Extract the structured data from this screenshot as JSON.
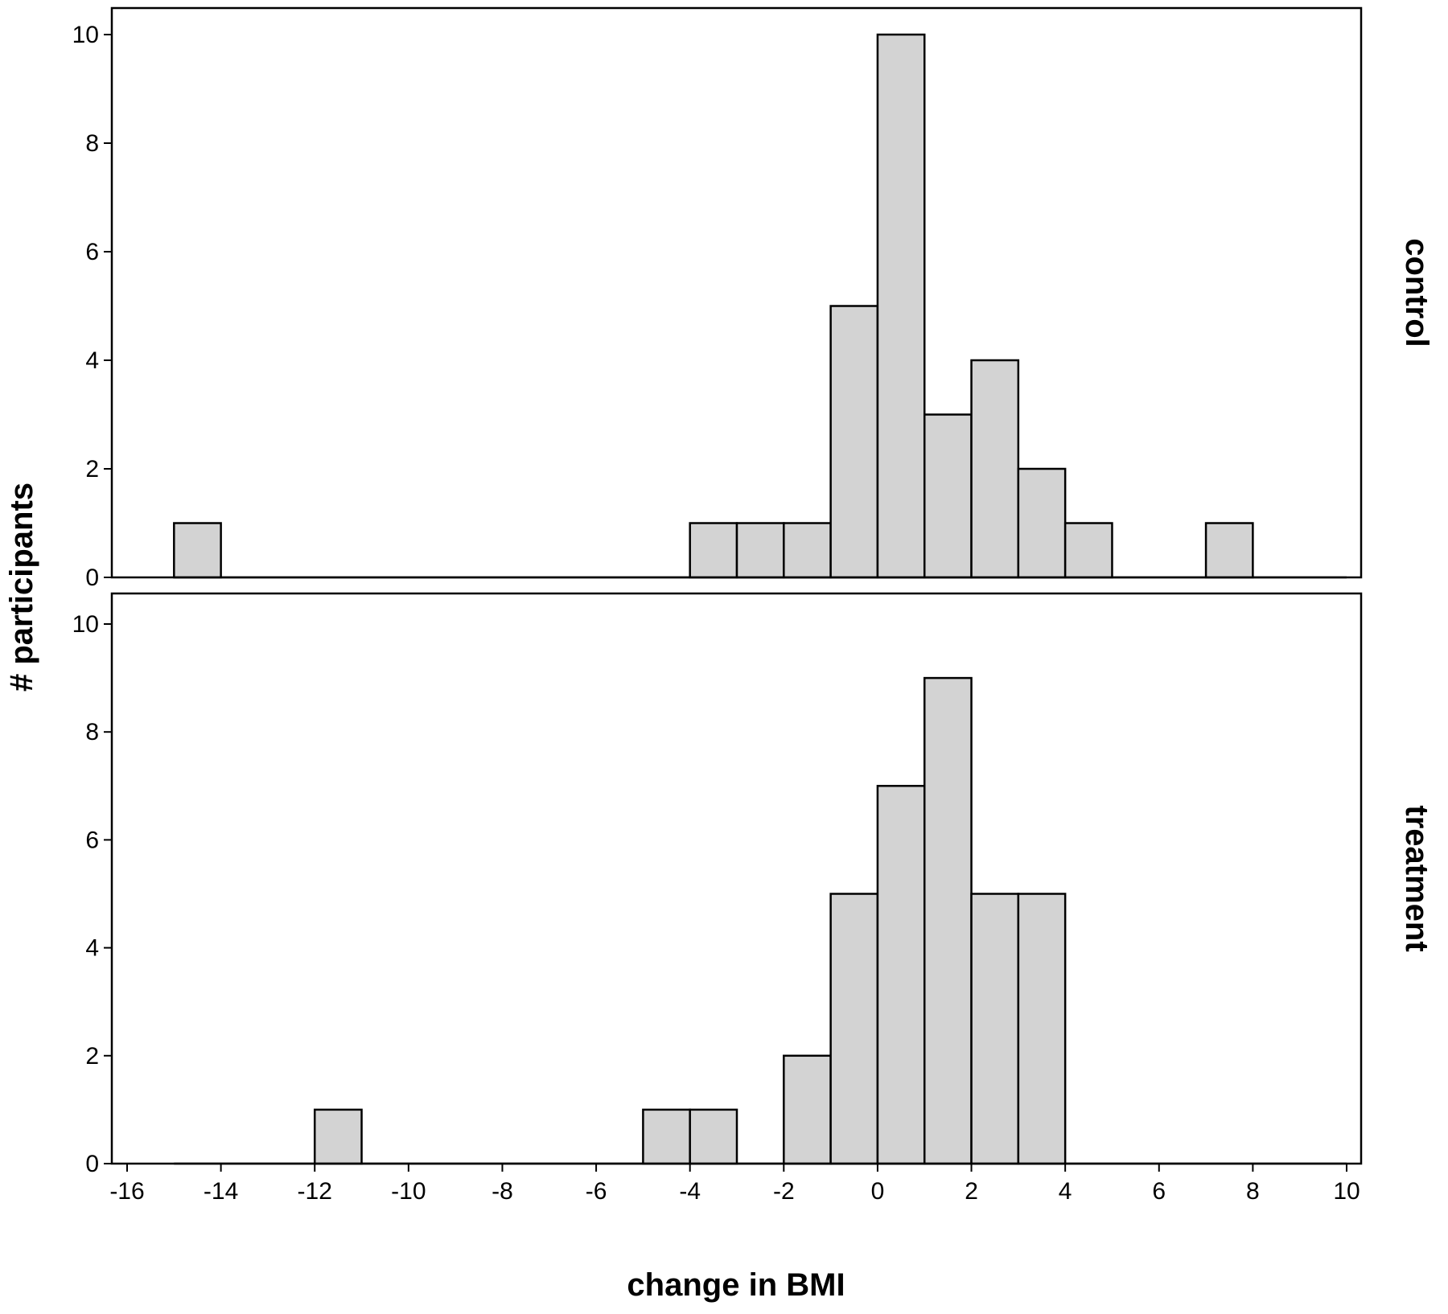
{
  "chart_data": {
    "type": "bar",
    "subtype": "histogram",
    "xlabel": "change in BMI",
    "ylabel": "# participants",
    "xlim": [
      -16,
      10
    ],
    "ylim": [
      0,
      10
    ],
    "xticks": [
      -16,
      -14,
      -12,
      -10,
      -8,
      -6,
      -4,
      -2,
      0,
      2,
      4,
      6,
      8,
      10
    ],
    "yticks": [
      0,
      2,
      4,
      6,
      8,
      10
    ],
    "bin_width": 1,
    "grid": false,
    "bar_color": "#d3d3d3",
    "panels": [
      {
        "name": "control",
        "bins": [
          {
            "x0": -15,
            "x1": -14,
            "count": 1
          },
          {
            "x0": -4,
            "x1": -3,
            "count": 1
          },
          {
            "x0": -3,
            "x1": -2,
            "count": 1
          },
          {
            "x0": -2,
            "x1": -1,
            "count": 1
          },
          {
            "x0": -1,
            "x1": 0,
            "count": 5
          },
          {
            "x0": 0,
            "x1": 1,
            "count": 10
          },
          {
            "x0": 1,
            "x1": 2,
            "count": 3
          },
          {
            "x0": 2,
            "x1": 3,
            "count": 4
          },
          {
            "x0": 3,
            "x1": 4,
            "count": 2
          },
          {
            "x0": 4,
            "x1": 5,
            "count": 1
          },
          {
            "x0": 7,
            "x1": 8,
            "count": 1
          }
        ]
      },
      {
        "name": "treatment",
        "bins": [
          {
            "x0": -12,
            "x1": -11,
            "count": 1
          },
          {
            "x0": -5,
            "x1": -4,
            "count": 1
          },
          {
            "x0": -4,
            "x1": -3,
            "count": 1
          },
          {
            "x0": -2,
            "x1": -1,
            "count": 2
          },
          {
            "x0": -1,
            "x1": 0,
            "count": 5
          },
          {
            "x0": 0,
            "x1": 1,
            "count": 7
          },
          {
            "x0": 1,
            "x1": 2,
            "count": 9
          },
          {
            "x0": 2,
            "x1": 3,
            "count": 5
          },
          {
            "x0": 3,
            "x1": 4,
            "count": 5
          }
        ]
      }
    ]
  }
}
